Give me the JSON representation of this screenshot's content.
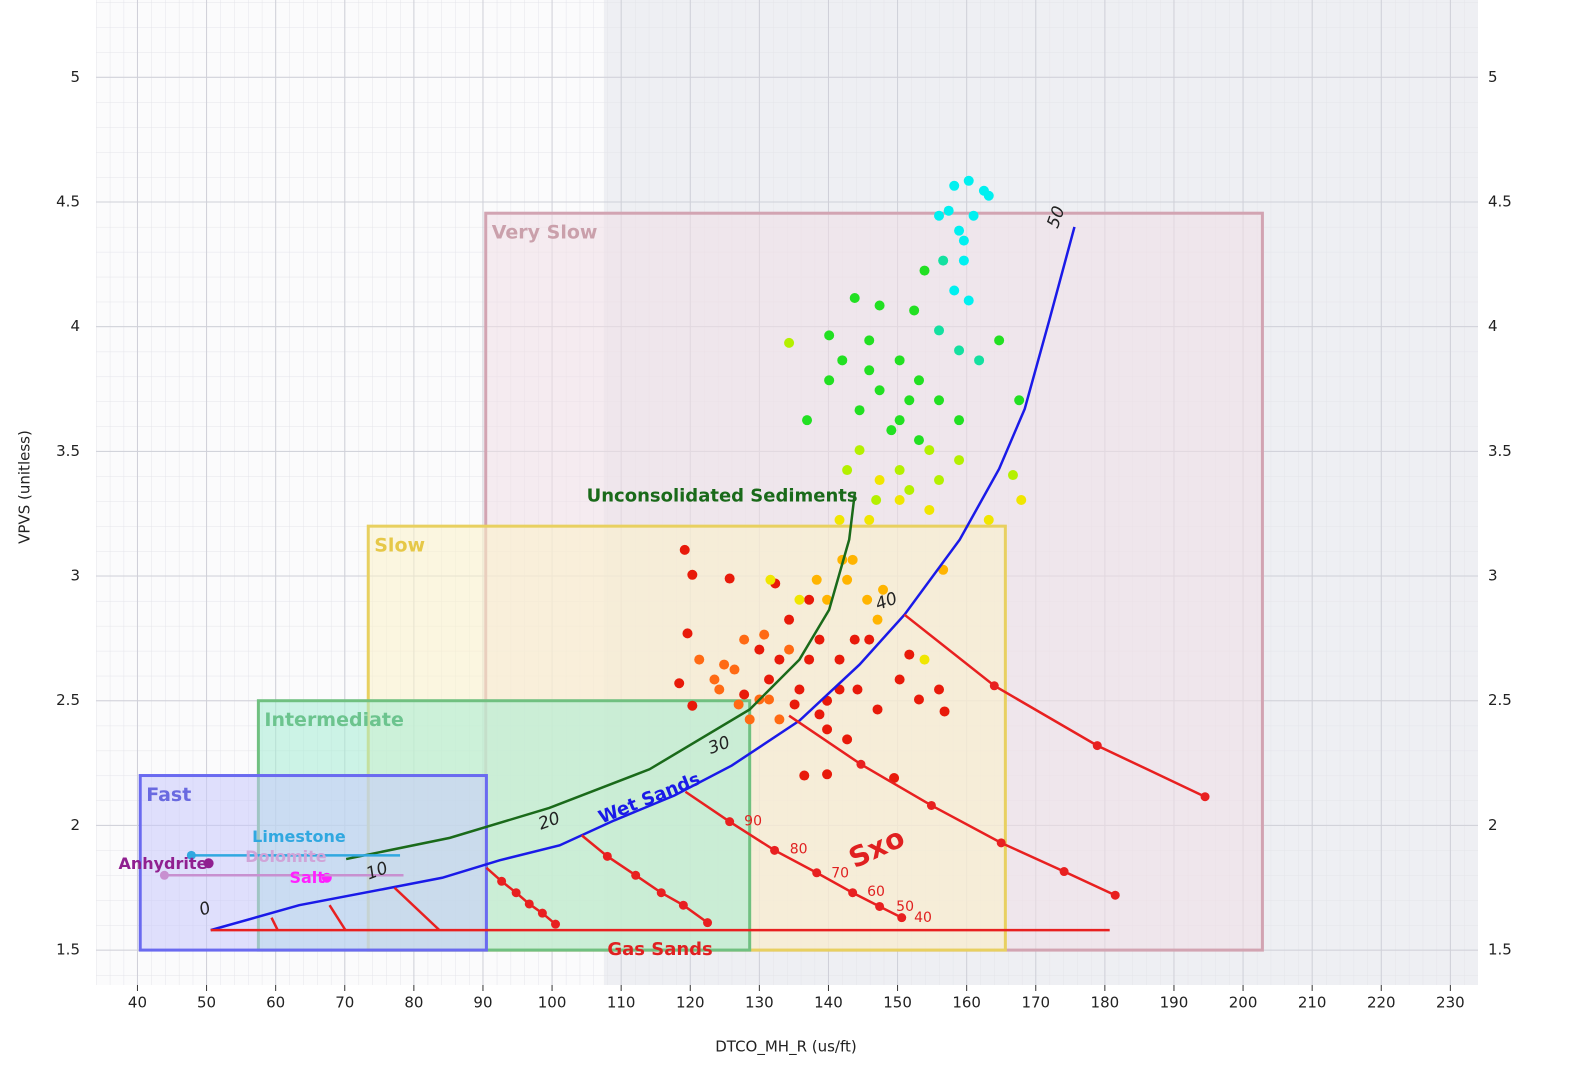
{
  "chart_data": {
    "type": "scatter",
    "x_label": "DTCO_MH_R (us/ft)",
    "y_label": "VPVS (unitless)",
    "xlim": [
      34,
      234
    ],
    "ylim": [
      1.36,
      5.31
    ],
    "xticks": [
      40,
      50,
      60,
      70,
      80,
      90,
      100,
      110,
      120,
      130,
      140,
      150,
      160,
      170,
      180,
      190,
      200,
      210,
      220,
      230
    ],
    "yticks": [
      1.5,
      2,
      2.5,
      3,
      3.5,
      4,
      4.5,
      5
    ],
    "grid": true,
    "shade_from": 107.5,
    "zones": [
      {
        "label": "Very Slow",
        "x": [
          90.4,
          202.8
        ],
        "y": [
          1.5,
          4.455
        ],
        "color": "#d2a4b2",
        "fill": "#f1dfe5",
        "text_color": "#caa0ab"
      },
      {
        "label": "Slow",
        "x": [
          73.4,
          165.6
        ],
        "y": [
          1.5,
          3.2
        ],
        "color": "#e8d060",
        "fill": "#fbf3c8",
        "text_color": "#e6c848"
      },
      {
        "label": "Intermediate",
        "x": [
          57.5,
          128.6
        ],
        "y": [
          1.5,
          2.5
        ],
        "color": "#70c080",
        "fill": "#a6ecd4",
        "text_color": "#6cc48e"
      },
      {
        "label": "Fast",
        "x": [
          40.4,
          90.5
        ],
        "y": [
          1.5,
          2.2
        ],
        "color": "#6a6af0",
        "fill": "#c8c8fb",
        "text_color": "#6a6ae0"
      }
    ],
    "curves": [
      {
        "color": "#1a6a1a",
        "x": [
          70.2,
          85.2,
          99.6,
          114.1,
          128.6,
          135.8,
          140.1,
          143,
          143.8
        ],
        "values": [
          1.865,
          1.95,
          2.07,
          2.225,
          2.465,
          2.665,
          2.865,
          3.146,
          3.33
        ],
        "markers": "none"
      },
      {
        "color": "#1a1ae8",
        "x": [
          50.6,
          63.4,
          75.7,
          84.1,
          92.4,
          101.1,
          109,
          117.7,
          126,
          135.8,
          144.5,
          151,
          159,
          164.7,
          168.4,
          172,
          175.6
        ],
        "values": [
          1.58,
          1.68,
          1.745,
          1.79,
          1.86,
          1.92,
          2.02,
          2.12,
          2.24,
          2.42,
          2.645,
          2.845,
          3.146,
          3.43,
          3.67,
          4.03,
          4.4
        ],
        "markers": "none"
      },
      {
        "color": "#e82020",
        "x": [
          50.6,
          180.7
        ],
        "values": [
          1.58,
          1.58
        ],
        "markers": "none"
      },
      {
        "color": "#e82020",
        "x": [
          151,
          164,
          178.9,
          194.5
        ],
        "values": [
          2.845,
          2.56,
          2.32,
          2.115
        ],
        "markers": "inner"
      },
      {
        "color": "#e82020",
        "x": [
          134.3,
          144.7,
          154.9,
          165,
          174.1,
          181.5
        ],
        "values": [
          2.44,
          2.245,
          2.08,
          1.93,
          1.815,
          1.72
        ],
        "markers": "inner"
      },
      {
        "color": "#e82020",
        "x": [
          119.3,
          125.7,
          132.2,
          138.3,
          143.5,
          147.4,
          150.6
        ],
        "values": [
          2.135,
          2.015,
          1.9,
          1.81,
          1.73,
          1.675,
          1.63
        ],
        "markers": "inner"
      },
      {
        "color": "#e82020",
        "x": [
          104.3,
          108,
          112.1,
          115.8,
          119,
          122.5
        ],
        "values": [
          1.96,
          1.876,
          1.8,
          1.73,
          1.68,
          1.61
        ],
        "markers": "inner"
      },
      {
        "color": "#e82020",
        "x": [
          90.5,
          92.7,
          94.8,
          96.7,
          98.6,
          100.5
        ],
        "values": [
          1.83,
          1.776,
          1.73,
          1.685,
          1.648,
          1.604
        ],
        "markers": "inner"
      },
      {
        "color": "#e82020",
        "x": [
          77.2,
          83.7
        ],
        "values": [
          1.75,
          1.58
        ],
        "markers": "none"
      },
      {
        "color": "#e82020",
        "x": [
          67.8,
          70.1
        ],
        "values": [
          1.68,
          1.58
        ],
        "markers": "none"
      },
      {
        "color": "#e82020",
        "x": [
          59.4,
          60.3
        ],
        "values": [
          1.63,
          1.58
        ],
        "markers": "none"
      },
      {
        "color": "#30a8e0",
        "x": [
          47.8,
          78
        ],
        "values": [
          1.88,
          1.88
        ],
        "markers": "first"
      },
      {
        "color": "#c890d0",
        "x": [
          43.9,
          78.5
        ],
        "values": [
          1.8,
          1.8
        ],
        "markers": "first"
      }
    ],
    "points": [
      {
        "color": "#e81a0a",
        "x": [
          119.2,
          120.3,
          125.7,
          132.3,
          119.6,
          118.4,
          120.3,
          136.5,
          139.8,
          149.5,
          156.8,
          156,
          151.7,
          145.9,
          141.6,
          138.7,
          135.8,
          132.9,
          130,
          127.8,
          139.8,
          144.2,
          147.1,
          142.7,
          139.8,
          134.3,
          137.2,
          153.1,
          150.3,
          131.4,
          141.6,
          137.2,
          143.8,
          138.7,
          135.1
        ],
        "values": [
          3.105,
          3.005,
          2.99,
          2.97,
          2.77,
          2.57,
          2.48,
          2.2,
          2.205,
          2.19,
          2.457,
          2.545,
          2.685,
          2.745,
          2.665,
          2.745,
          2.545,
          2.665,
          2.705,
          2.525,
          2.5,
          2.545,
          2.465,
          2.345,
          2.385,
          2.825,
          2.905,
          2.505,
          2.585,
          2.585,
          2.545,
          2.665,
          2.745,
          2.445,
          2.485
        ]
      },
      {
        "color": "#ff6a14",
        "x": [
          124.2,
          126.4,
          128.6,
          130,
          132.9,
          121.3,
          127.8,
          131.4,
          127,
          124.9,
          130.7,
          134.3,
          123.5
        ],
        "values": [
          2.545,
          2.625,
          2.425,
          2.505,
          2.425,
          2.665,
          2.745,
          2.505,
          2.485,
          2.645,
          2.765,
          2.705,
          2.585
        ]
      },
      {
        "color": "#ffb400",
        "x": [
          139.8,
          142.7,
          145.6,
          142,
          147.1,
          138.3,
          143.5,
          147.9,
          156.6
        ],
        "values": [
          2.905,
          2.985,
          2.905,
          3.065,
          2.825,
          2.985,
          3.065,
          2.945,
          3.025
        ]
      },
      {
        "color": "#f0e600",
        "x": [
          131.6,
          135.8,
          141.6,
          145.9,
          150.3,
          154.6,
          153.9,
          163.2,
          167.9,
          147.4
        ],
        "values": [
          2.985,
          2.905,
          3.225,
          3.225,
          3.305,
          3.265,
          2.665,
          3.225,
          3.305,
          3.385
        ]
      },
      {
        "color": "#b4f000",
        "x": [
          142.7,
          150.3,
          156,
          158.9,
          146.9,
          151.7,
          144.5,
          154.6,
          166.7,
          134.3
        ],
        "values": [
          3.425,
          3.425,
          3.385,
          3.465,
          3.305,
          3.345,
          3.505,
          3.505,
          3.405,
          3.935
        ]
      },
      {
        "color": "#22e022",
        "x": [
          143.8,
          147.4,
          152.4,
          140.1,
          145.9,
          150.3,
          153.1,
          147.4,
          144.5,
          150.3,
          156,
          149.1,
          153.1,
          140.1,
          158.9,
          145.9,
          151.7,
          153.9,
          164.7,
          167.6,
          136.9,
          142
        ],
        "values": [
          4.115,
          4.085,
          4.065,
          3.965,
          3.945,
          3.865,
          3.785,
          3.745,
          3.665,
          3.625,
          3.705,
          3.585,
          3.545,
          3.785,
          3.625,
          3.825,
          3.705,
          4.225,
          3.945,
          3.705,
          3.625,
          3.865
        ]
      },
      {
        "color": "#14e0a0",
        "x": [
          156,
          158.9,
          161.8,
          156.6
        ],
        "values": [
          3.985,
          3.905,
          3.865,
          4.265
        ]
      },
      {
        "color": "#00f0f0",
        "x": [
          158.2,
          159.6,
          158.9,
          157.4,
          161,
          162.5,
          160.3,
          163.2,
          158.2,
          156,
          159.6,
          160.3
        ],
        "values": [
          4.145,
          4.265,
          4.385,
          4.465,
          4.445,
          4.545,
          4.585,
          4.525,
          4.565,
          4.445,
          4.345,
          4.105
        ]
      },
      {
        "color": "#ff20ff",
        "x": [
          67.4
        ],
        "values": [
          1.79
        ]
      },
      {
        "color": "#902090",
        "x": [
          50.3
        ],
        "values": [
          1.848
        ]
      }
    ],
    "annotations": [
      {
        "text": "Unconsolidated Sediments",
        "x": 105,
        "y": 3.318,
        "color": "#1a6a1a"
      },
      {
        "text": "Wet Sands",
        "x": 106.9,
        "y": 2.025,
        "color": "#1a1ae8"
      },
      {
        "text": "Gas Sands",
        "x": 108,
        "y": 1.5,
        "color": "#e02020"
      },
      {
        "text": "Sxo",
        "x": 143.3,
        "y": 1.856,
        "color": "#e02020"
      },
      {
        "text": "Limestone",
        "x": 56.6,
        "y": 1.952,
        "color": "#30a8e0"
      },
      {
        "text": "Dolomite",
        "x": 55.6,
        "y": 1.872,
        "color": "#d0a4d8"
      },
      {
        "text": "Salt",
        "x": 62,
        "y": 1.788,
        "color": "#ff20ff"
      },
      {
        "text": "Anhydrite",
        "x": 37.25,
        "y": 1.844,
        "color": "#902090"
      }
    ],
    "wet_sand_labels": [
      {
        "text": "0",
        "x": 49.8,
        "y": 1.664
      },
      {
        "text": "10",
        "x": 74.7,
        "y": 1.816
      },
      {
        "text": "20",
        "x": 99.6,
        "y": 2.016
      },
      {
        "text": "30",
        "x": 124.2,
        "y": 2.32
      },
      {
        "text": "40",
        "x": 148.4,
        "y": 2.897
      },
      {
        "text": "50",
        "x": 173,
        "y": 4.439
      }
    ],
    "sxo_labels": [
      {
        "text": "90",
        "x": 127.8,
        "y": 2.016
      },
      {
        "text": "80",
        "x": 134.4,
        "y": 1.904
      },
      {
        "text": "70",
        "x": 140.4,
        "y": 1.808
      },
      {
        "text": "60",
        "x": 145.6,
        "y": 1.732
      },
      {
        "text": "50",
        "x": 149.8,
        "y": 1.672
      },
      {
        "text": "40",
        "x": 152.4,
        "y": 1.628
      }
    ]
  }
}
